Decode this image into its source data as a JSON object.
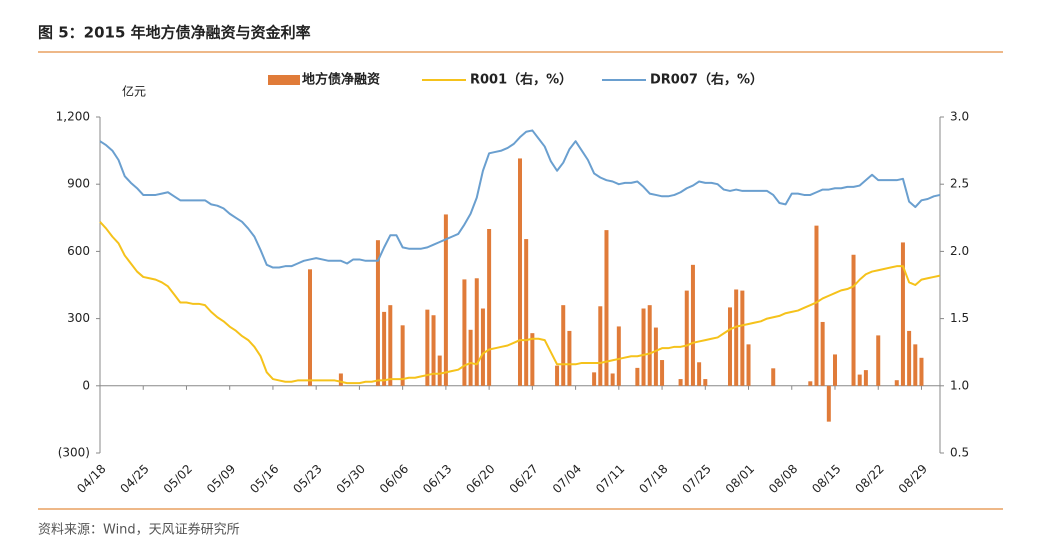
{
  "chart_data": {
    "type": "combo",
    "title": "图 5：2015 年地方债净融资与资金利率",
    "ylabel": "亿元",
    "source": "资料来源：Wind，天风证券研究所",
    "categories": [
      "04/18",
      null,
      null,
      null,
      null,
      null,
      null,
      "04/25",
      null,
      null,
      null,
      null,
      null,
      null,
      "05/02",
      null,
      null,
      null,
      null,
      null,
      null,
      "05/09",
      null,
      null,
      null,
      null,
      null,
      null,
      "05/16",
      null,
      null,
      null,
      null,
      null,
      null,
      "05/23",
      null,
      null,
      null,
      null,
      null,
      null,
      "05/30",
      null,
      null,
      null,
      null,
      null,
      null,
      "06/06",
      null,
      null,
      null,
      null,
      null,
      null,
      "06/13",
      null,
      null,
      null,
      null,
      null,
      null,
      "06/20",
      null,
      null,
      null,
      null,
      null,
      null,
      "06/27",
      null,
      null,
      null,
      null,
      null,
      null,
      "07/04",
      null,
      null,
      null,
      null,
      null,
      null,
      "07/11",
      null,
      null,
      null,
      null,
      null,
      null,
      "07/18",
      null,
      null,
      null,
      null,
      null,
      null,
      "07/25",
      null,
      null,
      null,
      null,
      null,
      null,
      "08/01",
      null,
      null,
      null,
      null,
      null,
      null,
      "08/08",
      null,
      null,
      null,
      null,
      null,
      null,
      "08/15",
      null,
      null,
      null,
      null,
      null,
      null,
      "08/22",
      null,
      null,
      null,
      null,
      null,
      null,
      "08/29",
      null,
      null,
      null
    ],
    "series": [
      {
        "name": "地方债净融资",
        "type": "bar",
        "color": "#e07b39",
        "values": [
          null,
          null,
          null,
          null,
          null,
          null,
          null,
          null,
          null,
          null,
          null,
          null,
          null,
          null,
          null,
          null,
          null,
          null,
          null,
          null,
          null,
          null,
          null,
          null,
          null,
          null,
          null,
          null,
          null,
          null,
          null,
          null,
          null,
          null,
          520,
          null,
          null,
          null,
          null,
          55,
          null,
          null,
          null,
          null,
          null,
          650,
          330,
          360,
          null,
          270,
          null,
          null,
          null,
          340,
          315,
          135,
          765,
          null,
          null,
          475,
          250,
          480,
          345,
          700,
          null,
          null,
          null,
          null,
          1015,
          655,
          235,
          null,
          null,
          null,
          90,
          360,
          245,
          null,
          null,
          null,
          60,
          355,
          695,
          55,
          265,
          null,
          null,
          80,
          345,
          360,
          260,
          115,
          null,
          null,
          30,
          425,
          540,
          105,
          30,
          null,
          null,
          null,
          350,
          430,
          425,
          185,
          null,
          null,
          null,
          78,
          null,
          null,
          null,
          null,
          null,
          20,
          715,
          285,
          -160,
          140,
          null,
          null,
          585,
          50,
          70,
          null,
          225,
          null,
          null,
          25,
          640,
          245,
          185,
          125,
          null,
          null,
          null
        ]
      },
      {
        "name": "R001（右，%）",
        "type": "line",
        "axis": "y2",
        "color": "#f5c21b",
        "values": [
          2.22,
          2.17,
          2.11,
          2.06,
          1.97,
          1.91,
          1.85,
          1.81,
          1.8,
          1.79,
          1.77,
          1.74,
          1.68,
          1.62,
          1.62,
          1.61,
          1.61,
          1.6,
          1.55,
          1.51,
          1.48,
          1.44,
          1.41,
          1.37,
          1.34,
          1.29,
          1.22,
          1.1,
          1.05,
          1.04,
          1.03,
          1.03,
          1.04,
          1.04,
          1.04,
          1.04,
          1.04,
          1.04,
          1.04,
          1.03,
          1.02,
          1.02,
          1.02,
          1.03,
          1.03,
          1.04,
          1.04,
          1.05,
          1.05,
          1.05,
          1.06,
          1.06,
          1.07,
          1.08,
          1.09,
          1.09,
          1.1,
          1.11,
          1.12,
          1.15,
          1.17,
          1.16,
          1.24,
          1.27,
          1.28,
          1.29,
          1.3,
          1.32,
          1.34,
          1.34,
          1.35,
          1.35,
          1.34,
          1.25,
          1.16,
          1.16,
          1.16,
          1.16,
          1.17,
          1.17,
          1.17,
          1.17,
          1.18,
          1.19,
          1.2,
          1.21,
          1.22,
          1.22,
          1.23,
          1.24,
          1.26,
          1.28,
          1.28,
          1.29,
          1.29,
          1.3,
          1.32,
          1.33,
          1.34,
          1.35,
          1.36,
          1.39,
          1.42,
          1.44,
          1.45,
          1.46,
          1.47,
          1.48,
          1.5,
          1.51,
          1.52,
          1.54,
          1.55,
          1.56,
          1.58,
          1.6,
          1.62,
          1.65,
          1.67,
          1.69,
          1.71,
          1.72,
          1.74,
          1.79,
          1.83,
          1.85,
          1.86,
          1.87,
          1.88,
          1.89,
          1.89,
          1.77,
          1.75,
          1.79,
          1.8,
          1.81,
          1.82
        ]
      },
      {
        "name": "DR007（右，%）",
        "type": "line",
        "axis": "y2",
        "color": "#6a9fcf",
        "values": [
          2.82,
          2.79,
          2.75,
          2.68,
          2.56,
          2.51,
          2.47,
          2.42,
          2.42,
          2.42,
          2.43,
          2.44,
          2.41,
          2.38,
          2.38,
          2.38,
          2.38,
          2.38,
          2.35,
          2.34,
          2.32,
          2.28,
          2.25,
          2.22,
          2.17,
          2.11,
          2.01,
          1.9,
          1.88,
          1.88,
          1.89,
          1.89,
          1.91,
          1.93,
          1.94,
          1.95,
          1.94,
          1.93,
          1.93,
          1.93,
          1.91,
          1.94,
          1.94,
          1.93,
          1.93,
          1.93,
          2.03,
          2.12,
          2.12,
          2.03,
          2.02,
          2.02,
          2.02,
          2.03,
          2.05,
          2.07,
          2.09,
          2.11,
          2.13,
          2.2,
          2.28,
          2.4,
          2.6,
          2.73,
          2.74,
          2.75,
          2.77,
          2.8,
          2.85,
          2.89,
          2.9,
          2.84,
          2.78,
          2.67,
          2.6,
          2.66,
          2.76,
          2.82,
          2.75,
          2.68,
          2.58,
          2.55,
          2.53,
          2.52,
          2.5,
          2.51,
          2.51,
          2.52,
          2.48,
          2.43,
          2.42,
          2.41,
          2.41,
          2.42,
          2.44,
          2.47,
          2.49,
          2.52,
          2.51,
          2.51,
          2.5,
          2.46,
          2.45,
          2.46,
          2.45,
          2.45,
          2.45,
          2.45,
          2.45,
          2.42,
          2.36,
          2.35,
          2.43,
          2.43,
          2.42,
          2.42,
          2.44,
          2.46,
          2.46,
          2.47,
          2.47,
          2.48,
          2.48,
          2.49,
          2.53,
          2.57,
          2.53,
          2.53,
          2.53,
          2.53,
          2.54,
          2.37,
          2.33,
          2.38,
          2.39,
          2.41,
          2.42
        ]
      }
    ],
    "ylim": [
      -300,
      1200
    ],
    "yticks": [
      {
        "value": 1200,
        "label": "1,200"
      },
      900,
      600,
      300,
      0,
      {
        "value": -300,
        "label": "(300)"
      }
    ],
    "y2lim": [
      0.5,
      3.0
    ],
    "y2ticks": [
      {
        "value": 3.0,
        "label": "3.0"
      },
      {
        "value": 2.5,
        "label": "2.5"
      },
      {
        "value": 2.0,
        "label": "2.0"
      },
      {
        "value": 1.5,
        "label": "1.5"
      },
      {
        "value": 1.0,
        "label": "1.0"
      },
      {
        "value": 0.5,
        "label": "0.5"
      }
    ],
    "grid": false,
    "legend": "top"
  }
}
